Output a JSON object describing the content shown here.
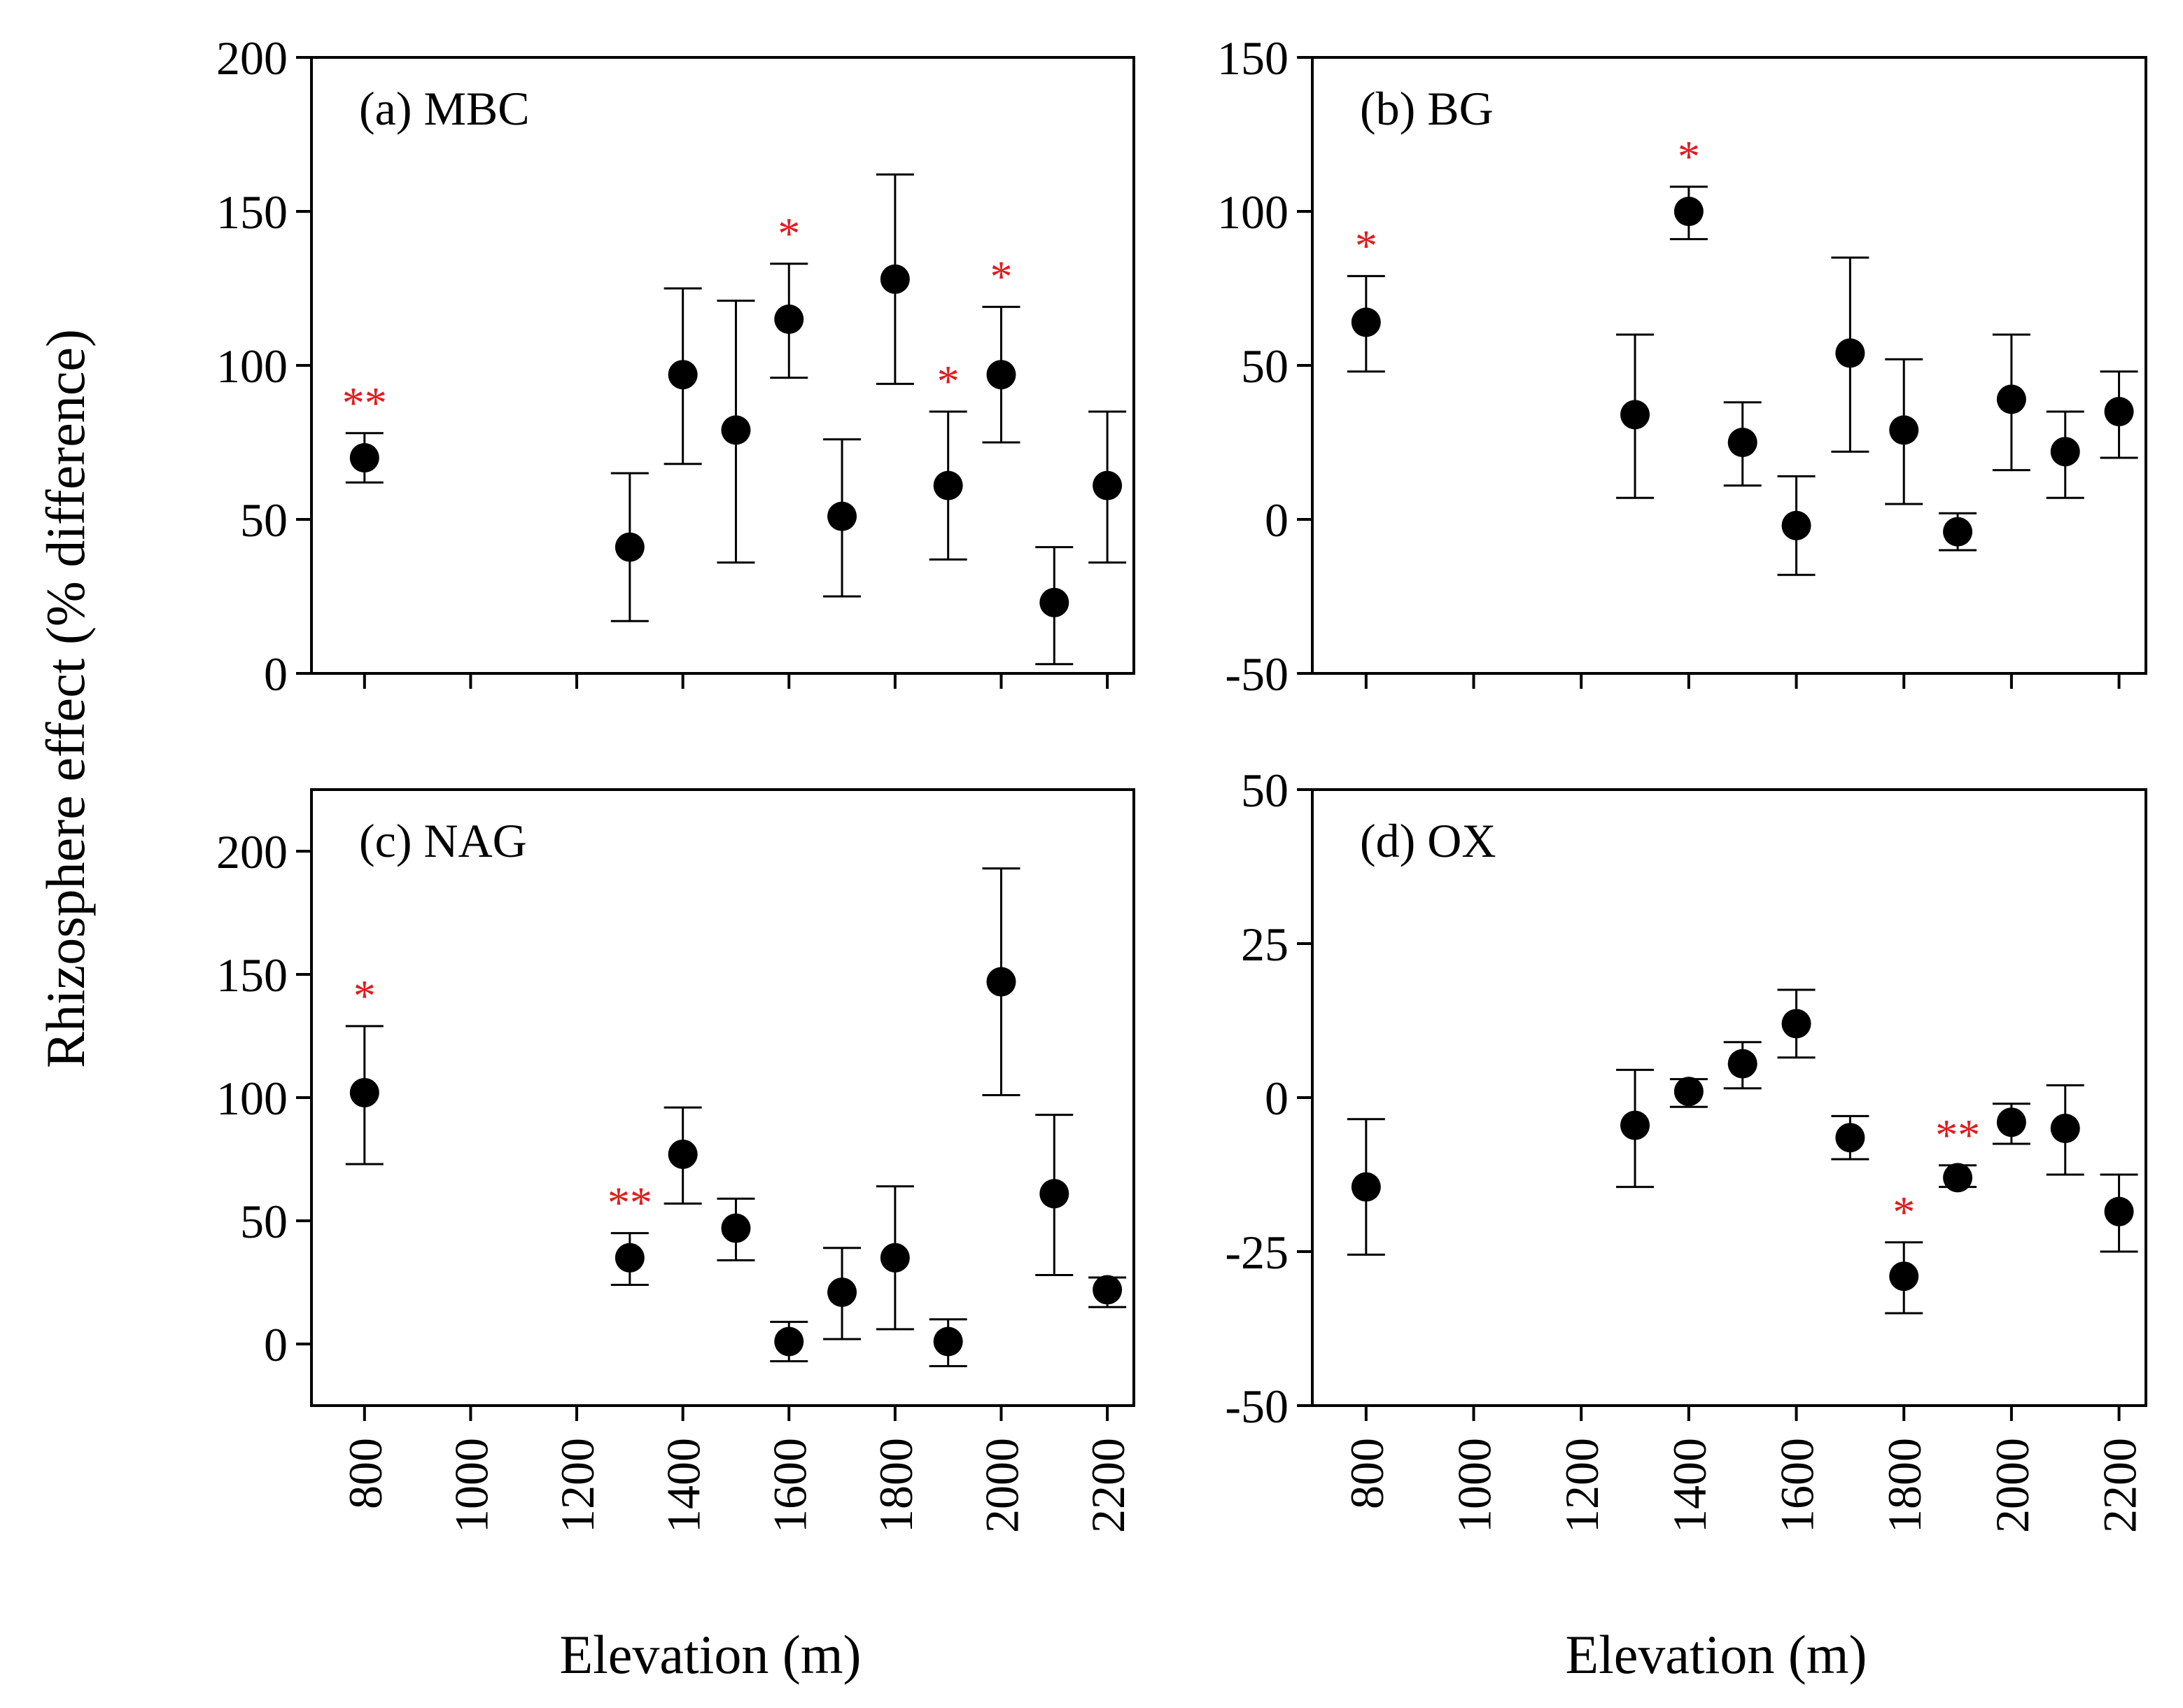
{
  "colors": {
    "ink": "#000000",
    "significance": "#e31a1c",
    "background": "#ffffff"
  },
  "y_axis_title": "Rhizosphere effect (% difference)",
  "x_axis_title": "Elevation (m)",
  "chart_data": [
    {
      "type": "scatter",
      "id": "a",
      "label": "(a)  MBC",
      "xlabel": "Elevation (m)",
      "xlim": [
        700,
        2250
      ],
      "xticks": [
        800,
        1000,
        1200,
        1400,
        1600,
        1800,
        2000,
        2200
      ],
      "xtick_labels": [
        "800",
        "1000",
        "1200",
        "1400",
        "1600",
        "1800",
        "2000",
        "2200"
      ],
      "ylim": [
        0,
        200
      ],
      "yticks": [
        0,
        50,
        100,
        150,
        200
      ],
      "ytick_labels": [
        "0",
        "50",
        "100",
        "150",
        "200"
      ],
      "points": [
        {
          "x": 800,
          "y": 70,
          "lo": 62,
          "hi": 78,
          "sig": "**"
        },
        {
          "x": 1300,
          "y": 41,
          "lo": 17,
          "hi": 65,
          "sig": ""
        },
        {
          "x": 1400,
          "y": 97,
          "lo": 68,
          "hi": 125,
          "sig": ""
        },
        {
          "x": 1500,
          "y": 79,
          "lo": 36,
          "hi": 121,
          "sig": ""
        },
        {
          "x": 1600,
          "y": 115,
          "lo": 96,
          "hi": 133,
          "sig": "*"
        },
        {
          "x": 1700,
          "y": 51,
          "lo": 25,
          "hi": 76,
          "sig": ""
        },
        {
          "x": 1800,
          "y": 128,
          "lo": 94,
          "hi": 162,
          "sig": ""
        },
        {
          "x": 1900,
          "y": 61,
          "lo": 37,
          "hi": 85,
          "sig": "*"
        },
        {
          "x": 2000,
          "y": 97,
          "lo": 75,
          "hi": 119,
          "sig": "*"
        },
        {
          "x": 2100,
          "y": 23,
          "lo": 3,
          "hi": 41,
          "sig": ""
        },
        {
          "x": 2200,
          "y": 61,
          "lo": 36,
          "hi": 85,
          "sig": ""
        }
      ]
    },
    {
      "type": "scatter",
      "id": "b",
      "label": "(b)  BG",
      "xlabel": "Elevation (m)",
      "xlim": [
        700,
        2250
      ],
      "xticks": [
        800,
        1000,
        1200,
        1400,
        1600,
        1800,
        2000,
        2200
      ],
      "xtick_labels": [
        "800",
        "1000",
        "1200",
        "1400",
        "1600",
        "1800",
        "2000",
        "2200"
      ],
      "ylim": [
        -50,
        150
      ],
      "yticks": [
        -50,
        0,
        50,
        100,
        150
      ],
      "ytick_labels": [
        "-50",
        "0",
        "50",
        "100",
        "150"
      ],
      "points": [
        {
          "x": 800,
          "y": 64,
          "lo": 48,
          "hi": 79,
          "sig": "*"
        },
        {
          "x": 1300,
          "y": 34,
          "lo": 7,
          "hi": 60,
          "sig": ""
        },
        {
          "x": 1400,
          "y": 100,
          "lo": 91,
          "hi": 108,
          "sig": "*"
        },
        {
          "x": 1500,
          "y": 25,
          "lo": 11,
          "hi": 38,
          "sig": ""
        },
        {
          "x": 1600,
          "y": -2,
          "lo": -18,
          "hi": 14,
          "sig": ""
        },
        {
          "x": 1700,
          "y": 54,
          "lo": 22,
          "hi": 85,
          "sig": ""
        },
        {
          "x": 1800,
          "y": 29,
          "lo": 5,
          "hi": 52,
          "sig": ""
        },
        {
          "x": 1900,
          "y": -4,
          "lo": -10,
          "hi": 2,
          "sig": ""
        },
        {
          "x": 2000,
          "y": 39,
          "lo": 16,
          "hi": 60,
          "sig": ""
        },
        {
          "x": 2100,
          "y": 22,
          "lo": 7,
          "hi": 35,
          "sig": ""
        },
        {
          "x": 2200,
          "y": 35,
          "lo": 20,
          "hi": 48,
          "sig": ""
        }
      ]
    },
    {
      "type": "scatter",
      "id": "c",
      "label": "(c)  NAG",
      "xlabel": "Elevation (m)",
      "xlim": [
        700,
        2250
      ],
      "xticks": [
        800,
        1000,
        1200,
        1400,
        1600,
        1800,
        2000,
        2200
      ],
      "xtick_labels": [
        "800",
        "1000",
        "1200",
        "1400",
        "1600",
        "1800",
        "2000",
        "2200"
      ],
      "ylim": [
        -25,
        225
      ],
      "yticks": [
        0,
        50,
        100,
        150,
        200
      ],
      "ytick_labels": [
        "0",
        "50",
        "100",
        "150",
        "200"
      ],
      "points": [
        {
          "x": 800,
          "y": 102,
          "lo": 73,
          "hi": 129,
          "sig": "*"
        },
        {
          "x": 1300,
          "y": 35,
          "lo": 24,
          "hi": 45,
          "sig": "**"
        },
        {
          "x": 1400,
          "y": 77,
          "lo": 57,
          "hi": 96,
          "sig": ""
        },
        {
          "x": 1500,
          "y": 47,
          "lo": 34,
          "hi": 59,
          "sig": ""
        },
        {
          "x": 1600,
          "y": 1,
          "lo": -7,
          "hi": 9,
          "sig": ""
        },
        {
          "x": 1700,
          "y": 21,
          "lo": 2,
          "hi": 39,
          "sig": ""
        },
        {
          "x": 1800,
          "y": 35,
          "lo": 6,
          "hi": 64,
          "sig": ""
        },
        {
          "x": 1900,
          "y": 1,
          "lo": -9,
          "hi": 10,
          "sig": ""
        },
        {
          "x": 2000,
          "y": 147,
          "lo": 101,
          "hi": 193,
          "sig": ""
        },
        {
          "x": 2100,
          "y": 61,
          "lo": 28,
          "hi": 93,
          "sig": ""
        },
        {
          "x": 2200,
          "y": 22,
          "lo": 15,
          "hi": 27,
          "sig": ""
        }
      ]
    },
    {
      "type": "scatter",
      "id": "d",
      "label": "(d)  OX",
      "xlabel": "Elevation (m)",
      "xlim": [
        700,
        2250
      ],
      "xticks": [
        800,
        1000,
        1200,
        1400,
        1600,
        1800,
        2000,
        2200
      ],
      "xtick_labels": [
        "800",
        "1000",
        "1200",
        "1400",
        "1600",
        "1800",
        "2000",
        "2200"
      ],
      "ylim": [
        -50,
        50
      ],
      "yticks": [
        -50,
        -25,
        0,
        25,
        50
      ],
      "ytick_labels": [
        "-50",
        "-25",
        "0",
        "25",
        "50"
      ],
      "points": [
        {
          "x": 800,
          "y": -14.5,
          "lo": -25.5,
          "hi": -3.5,
          "sig": ""
        },
        {
          "x": 1300,
          "y": -4.5,
          "lo": -14.5,
          "hi": 4.5,
          "sig": ""
        },
        {
          "x": 1400,
          "y": 1,
          "lo": -1.5,
          "hi": 3,
          "sig": ""
        },
        {
          "x": 1500,
          "y": 5.5,
          "lo": 1.5,
          "hi": 9,
          "sig": ""
        },
        {
          "x": 1600,
          "y": 12,
          "lo": 6.5,
          "hi": 17.5,
          "sig": ""
        },
        {
          "x": 1700,
          "y": -6.5,
          "lo": -10,
          "hi": -3,
          "sig": ""
        },
        {
          "x": 1800,
          "y": -29,
          "lo": -35,
          "hi": -23.5,
          "sig": "*"
        },
        {
          "x": 1900,
          "y": -13,
          "lo": -14.5,
          "hi": -11,
          "sig": "**"
        },
        {
          "x": 2000,
          "y": -4,
          "lo": -7.5,
          "hi": -1,
          "sig": ""
        },
        {
          "x": 2100,
          "y": -5,
          "lo": -12.5,
          "hi": 2,
          "sig": ""
        },
        {
          "x": 2200,
          "y": -18.5,
          "lo": -25,
          "hi": -12.5,
          "sig": ""
        }
      ]
    }
  ]
}
